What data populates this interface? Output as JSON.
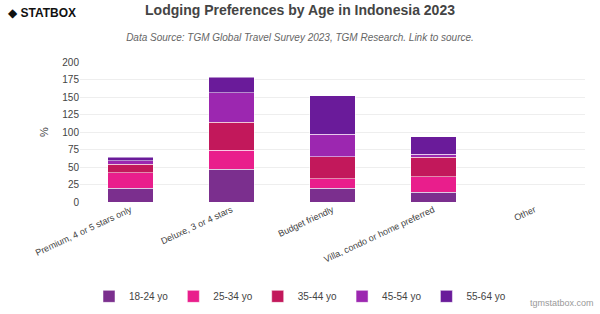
{
  "chart_data": {
    "type": "bar",
    "title": "Lodging Preferences by Age in Indonesia 2023",
    "subtitle": "Data Source: TGM Global Travel Survey 2023, TGM Research. Link to source.",
    "ylabel": "%",
    "annotations": [
      "◆ STATBOX",
      "tgmstatbox.com"
    ],
    "categories": [
      "Premium, 4 or 5 stars only",
      "Deluxe, 3 or 4 stars",
      "Budget friendly",
      "Villa, condo or home preferred",
      "Other"
    ],
    "series": [
      {
        "name": "18-24 yo",
        "color": "#7b2f8e",
        "values": [
          20,
          47,
          20,
          14,
          0
        ]
      },
      {
        "name": "25-34 yo",
        "color": "#e91e8c",
        "values": [
          22,
          27,
          13,
          22,
          0
        ]
      },
      {
        "name": "35-44 yo",
        "color": "#c2185b",
        "values": [
          12,
          40,
          32,
          28,
          0
        ]
      },
      {
        "name": "45-54 yo",
        "color": "#9c27b0",
        "values": [
          5,
          42,
          32,
          4,
          0
        ]
      },
      {
        "name": "55-64 yo",
        "color": "#6a1b9a",
        "values": [
          5,
          22,
          55,
          25,
          0
        ]
      }
    ],
    "stacked": true,
    "ylim": [
      0,
      200
    ],
    "yticks": [
      0,
      25,
      50,
      75,
      100,
      125,
      150,
      175,
      200
    ],
    "grid": true,
    "legend": "bottom"
  }
}
